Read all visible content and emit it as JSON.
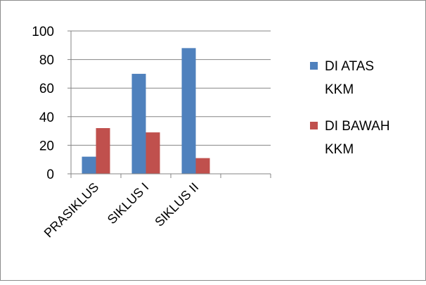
{
  "chart_data": {
    "type": "bar",
    "categories": [
      "PRASIKLUS",
      "SIKLUS I",
      "SIKLUS II",
      ""
    ],
    "series": [
      {
        "name": "DI ATAS KKM",
        "name_lines": [
          "DI ATAS",
          "KKM"
        ],
        "values": [
          12,
          70,
          88,
          null
        ],
        "color": "#4f81bd"
      },
      {
        "name": "DI BAWAH KKM",
        "name_lines": [
          "DI BAWAH",
          "KKM"
        ],
        "values": [
          32,
          29,
          11,
          null
        ],
        "color": "#c0504d"
      }
    ],
    "yticks": [
      "0",
      "20",
      "40",
      "60",
      "80",
      "100"
    ],
    "ylim": [
      0,
      100
    ],
    "grid": true,
    "legend_position": "right",
    "title": "",
    "xlabel": "",
    "ylabel": ""
  }
}
